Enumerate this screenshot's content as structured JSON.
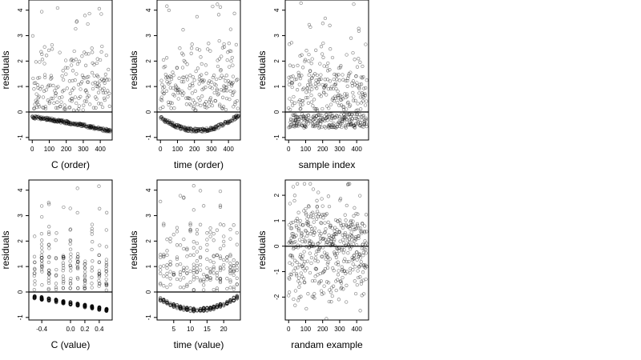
{
  "chart_data": [
    {
      "type": "scatter",
      "xlabel": "C (order)",
      "ylabel": "residuals",
      "xlim": [
        -20,
        470
      ],
      "ylim": [
        -1.1,
        4.4
      ],
      "xticks": [
        0,
        100,
        200,
        300,
        400
      ],
      "xtick_labels": [
        "0",
        "100",
        "200",
        "300",
        "400"
      ],
      "yticks": [
        -1,
        0,
        1,
        2,
        3,
        4
      ],
      "ytick_labels": [
        "-1",
        "0",
        "1",
        "2",
        "3",
        "4"
      ],
      "hline": 0,
      "pattern": "order_band",
      "n": 460
    },
    {
      "type": "scatter",
      "xlabel": "time (order)",
      "ylabel": "residuals",
      "xlim": [
        -20,
        470
      ],
      "ylim": [
        -1.1,
        4.4
      ],
      "xticks": [
        0,
        100,
        200,
        300,
        400
      ],
      "xtick_labels": [
        "0",
        "100",
        "200",
        "300",
        "400"
      ],
      "yticks": [
        -1,
        0,
        1,
        2,
        3,
        4
      ],
      "ytick_labels": [
        "-1",
        "0",
        "1",
        "2",
        "3",
        "4"
      ],
      "hline": 0,
      "pattern": "time_band",
      "n": 460
    },
    {
      "type": "scatter",
      "xlabel": "sample index",
      "ylabel": "residuals",
      "xlim": [
        -20,
        470
      ],
      "ylim": [
        -1.1,
        4.4
      ],
      "xticks": [
        0,
        100,
        200,
        300,
        400
      ],
      "xtick_labels": [
        "0",
        "100",
        "200",
        "300",
        "400"
      ],
      "yticks": [
        -1,
        0,
        1,
        2,
        3,
        4
      ],
      "ytick_labels": [
        "-1",
        "0",
        "1",
        "2",
        "3",
        "4"
      ],
      "hline": 0,
      "pattern": "index_band",
      "n": 460
    },
    {
      "type": "scatter",
      "xlabel": "C (value)",
      "ylabel": "residuals",
      "xlim": [
        -0.58,
        0.58
      ],
      "ylim": [
        -1.1,
        4.4
      ],
      "xticks": [
        -0.4,
        0.0,
        0.2,
        0.4
      ],
      "xtick_labels": [
        "-0.4",
        "0.0",
        "0.2",
        "0.4"
      ],
      "yticks": [
        -1,
        0,
        1,
        2,
        3,
        4
      ],
      "ytick_labels": [
        "-1",
        "0",
        "1",
        "2",
        "3",
        "4"
      ],
      "hline": 0,
      "pattern": "value_columns",
      "n": 460
    },
    {
      "type": "scatter",
      "xlabel": "time (value)",
      "ylabel": "residuals",
      "xlim": [
        0,
        25
      ],
      "ylim": [
        -1.1,
        4.4
      ],
      "xticks": [
        5,
        10,
        15,
        20
      ],
      "xtick_labels": [
        "5",
        "10",
        "15",
        "20"
      ],
      "yticks": [
        -1,
        0,
        1,
        2,
        3,
        4
      ],
      "ytick_labels": [
        "-1",
        "0",
        "1",
        "2",
        "3",
        "4"
      ],
      "hline": 0,
      "pattern": "time_columns",
      "n": 460
    },
    {
      "type": "scatter",
      "xlabel": "randam example",
      "ylabel": "residuals",
      "xlim": [
        -20,
        470
      ],
      "ylim": [
        -2.9,
        2.6
      ],
      "xticks": [
        0,
        100,
        200,
        300,
        400
      ],
      "xtick_labels": [
        "0",
        "100",
        "200",
        "300",
        "400"
      ],
      "yticks": [
        -2,
        -1,
        0,
        1,
        2
      ],
      "ytick_labels": [
        "-2",
        "-1",
        "0",
        "1",
        "2"
      ],
      "hline": 0,
      "pattern": "random_normal",
      "n": 460
    }
  ]
}
